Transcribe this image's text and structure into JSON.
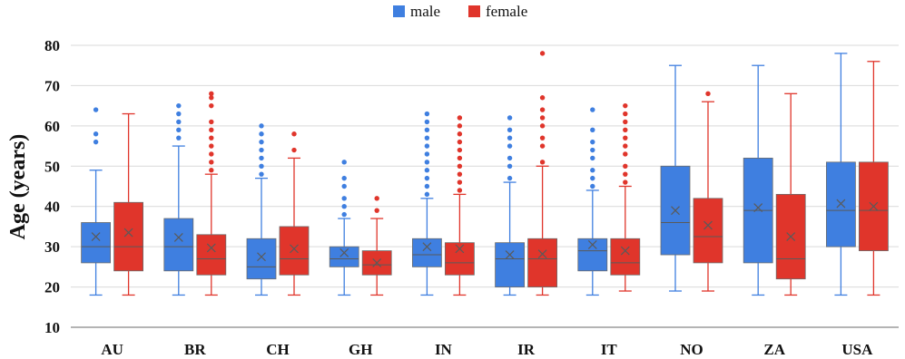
{
  "chart_data": {
    "type": "boxplot",
    "title": "",
    "xlabel": "",
    "ylabel": "Age (years)",
    "ylim": [
      10,
      80
    ],
    "yticks": [
      10,
      20,
      30,
      40,
      50,
      60,
      70,
      80
    ],
    "grid": "horizontal",
    "legend_position": "top-center",
    "categories": [
      "AU",
      "BR",
      "CH",
      "GH",
      "IN",
      "IR",
      "IT",
      "NO",
      "ZA",
      "USA"
    ],
    "series": [
      {
        "name": "male",
        "color": "#3f7fe0",
        "boxes": [
          {
            "min": 18,
            "q1": 26,
            "median": 30,
            "q3": 36,
            "max": 49,
            "mean": 32.5,
            "outliers": [
              56,
              58,
              64
            ]
          },
          {
            "min": 18,
            "q1": 24,
            "median": 30,
            "q3": 37,
            "max": 55,
            "mean": 32.3,
            "outliers": [
              57,
              59,
              61,
              63,
              65
            ]
          },
          {
            "min": 18,
            "q1": 22,
            "median": 25,
            "q3": 32,
            "max": 47,
            "mean": 27.5,
            "outliers": [
              48,
              50,
              52,
              54,
              56,
              58,
              60
            ]
          },
          {
            "min": 18,
            "q1": 25,
            "median": 27,
            "q3": 30,
            "max": 37,
            "mean": 28.5,
            "outliers": [
              38,
              40,
              42,
              45,
              47,
              51
            ]
          },
          {
            "min": 18,
            "q1": 25,
            "median": 28,
            "q3": 32,
            "max": 42,
            "mean": 30,
            "outliers": [
              43,
              45,
              47,
              49,
              51,
              53,
              55,
              57,
              59,
              61,
              63
            ]
          },
          {
            "min": 18,
            "q1": 20,
            "median": 27,
            "q3": 31,
            "max": 46,
            "mean": 28,
            "outliers": [
              47,
              50,
              52,
              55,
              57,
              59,
              62
            ]
          },
          {
            "min": 18,
            "q1": 24,
            "median": 29,
            "q3": 32,
            "max": 44,
            "mean": 30.5,
            "outliers": [
              45,
              47,
              49,
              52,
              54,
              56,
              59,
              64
            ]
          },
          {
            "min": 19,
            "q1": 28,
            "median": 36,
            "q3": 50,
            "max": 75,
            "mean": 39,
            "outliers": []
          },
          {
            "min": 18,
            "q1": 26,
            "median": 39,
            "q3": 52,
            "max": 75,
            "mean": 39.7,
            "outliers": []
          },
          {
            "min": 18,
            "q1": 30,
            "median": 39,
            "q3": 51,
            "max": 78,
            "mean": 40.7,
            "outliers": []
          }
        ]
      },
      {
        "name": "female",
        "color": "#e0352b",
        "boxes": [
          {
            "min": 18,
            "q1": 24,
            "median": 30,
            "q3": 41,
            "max": 63,
            "mean": 33.5,
            "outliers": []
          },
          {
            "min": 18,
            "q1": 23,
            "median": 27,
            "q3": 33,
            "max": 48,
            "mean": 29.7,
            "outliers": [
              49,
              51,
              53,
              55,
              57,
              59,
              61,
              65,
              67,
              68
            ]
          },
          {
            "min": 18,
            "q1": 23,
            "median": 27,
            "q3": 35,
            "max": 52,
            "mean": 29.5,
            "outliers": [
              54,
              58
            ]
          },
          {
            "min": 18,
            "q1": 23,
            "median": 25.5,
            "q3": 29,
            "max": 37,
            "mean": 26,
            "outliers": [
              39,
              42
            ]
          },
          {
            "min": 18,
            "q1": 23,
            "median": 26,
            "q3": 31,
            "max": 43,
            "mean": 29.5,
            "outliers": [
              44,
              46,
              48,
              50,
              52,
              54,
              56,
              58,
              60,
              62
            ]
          },
          {
            "min": 18,
            "q1": 20,
            "median": 27,
            "q3": 32,
            "max": 50,
            "mean": 28.2,
            "outliers": [
              51,
              55,
              57,
              60,
              62,
              64,
              67,
              78
            ]
          },
          {
            "min": 19,
            "q1": 23,
            "median": 26,
            "q3": 32,
            "max": 45,
            "mean": 29,
            "outliers": [
              46,
              48,
              50,
              53,
              55,
              57,
              59,
              61,
              63,
              65
            ]
          },
          {
            "min": 19,
            "q1": 26,
            "median": 32.5,
            "q3": 42,
            "max": 66,
            "mean": 35.3,
            "outliers": [
              68
            ]
          },
          {
            "min": 18,
            "q1": 22,
            "median": 27,
            "q3": 43,
            "max": 68,
            "mean": 32.5,
            "outliers": []
          },
          {
            "min": 18,
            "q1": 29,
            "median": 39,
            "q3": 51,
            "max": 76,
            "mean": 40,
            "outliers": []
          }
        ]
      }
    ]
  }
}
